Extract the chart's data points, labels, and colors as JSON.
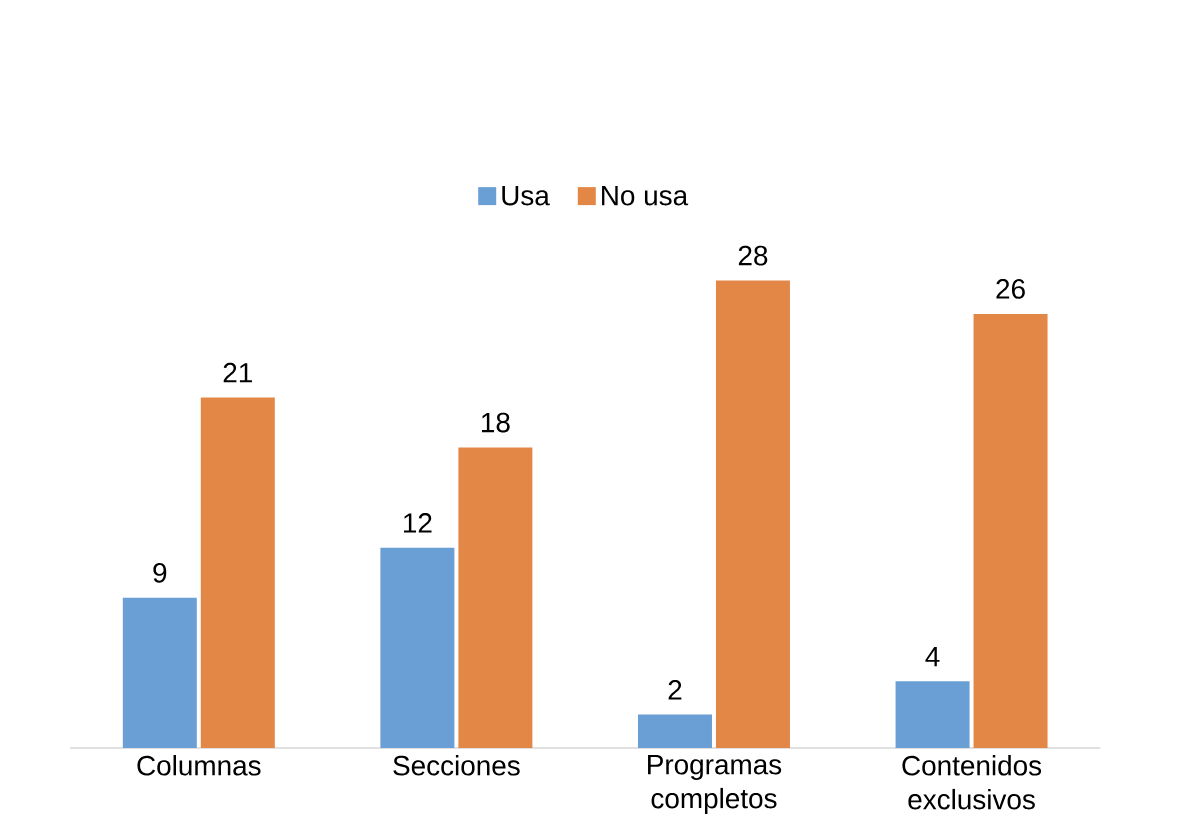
{
  "chart_data": {
    "type": "bar",
    "categories": [
      "Columnas",
      "Secciones",
      "Programas completos",
      "Contenidos exclusivos"
    ],
    "series": [
      {
        "name": "Usa",
        "color": "#6a9fd6",
        "values": [
          9,
          12,
          2,
          4
        ]
      },
      {
        "name": "No usa",
        "color": "#e38746",
        "values": [
          21,
          18,
          28,
          26
        ]
      }
    ],
    "data_labels": true,
    "legend": "top"
  }
}
